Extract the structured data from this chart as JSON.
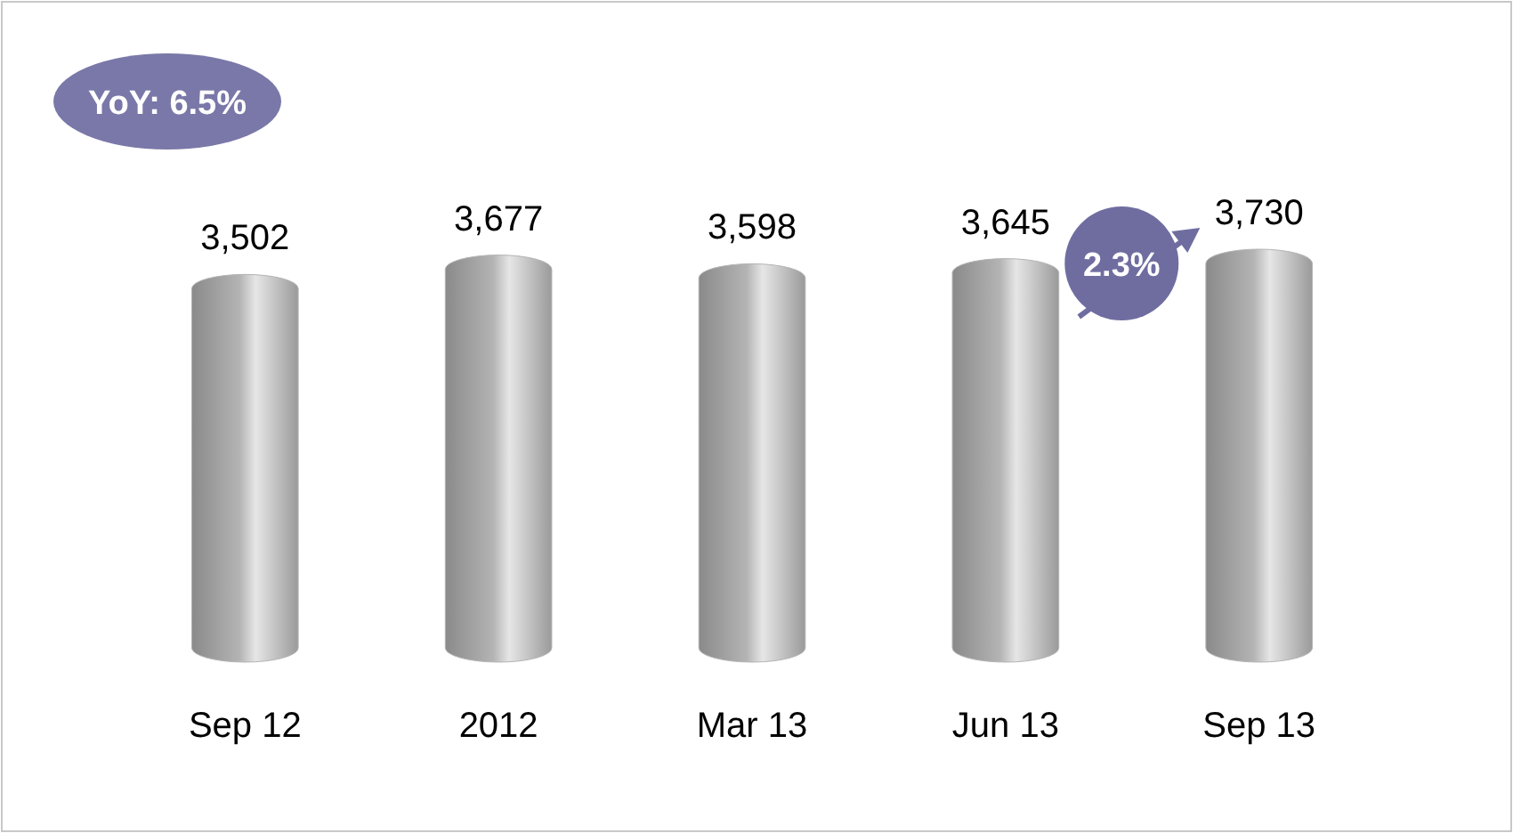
{
  "chart_data": {
    "type": "bar",
    "categories": [
      "Sep 12",
      "2012",
      "Mar 13",
      "Jun 13",
      "Sep 13"
    ],
    "values": [
      3502,
      3677,
      3598,
      3645,
      3730
    ],
    "color": "#b4b4b4",
    "value_labels": [
      "3,502",
      "3,677",
      "3,598",
      "3,645",
      "3,730"
    ],
    "annotations": [
      "YoY: 6.5%",
      "2.3%"
    ]
  }
}
